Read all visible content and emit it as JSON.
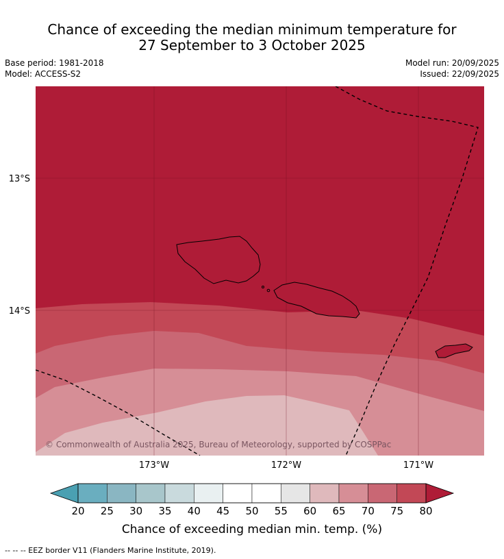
{
  "title": {
    "line1": "Chance of exceeding the median minimum temperature for",
    "line2": "27 September to 3 October 2025"
  },
  "meta_left": {
    "base_period": "Base period: 1981-2018",
    "model": "Model: ACCESS-S2"
  },
  "meta_right": {
    "model_run": "Model run: 20/09/2025",
    "issued": "Issued: 22/09/2025"
  },
  "map": {
    "lat_labels": [
      "13°S",
      "14°S"
    ],
    "lon_labels": [
      "173°W",
      "172°W",
      "171°W"
    ],
    "copyright": "© Commonwealth of Australia 2025, Bureau of Meteorology, supported by COSPPac",
    "bands": [
      {
        "range": "75-80",
        "color": "#c24856"
      },
      {
        "range": "70-75",
        "color": "#c96774"
      },
      {
        "range": "65-70",
        "color": "#d68e96"
      },
      {
        "range": "60-65",
        "color": "#dfb9bc"
      }
    ],
    "above_80_color": "#af1c37"
  },
  "colorbar": {
    "ticks": [
      "20",
      "25",
      "30",
      "35",
      "40",
      "45",
      "50",
      "55",
      "60",
      "65",
      "70",
      "75",
      "80"
    ],
    "segment_colors": [
      "#6aaebf",
      "#8ab6c2",
      "#a8c6cb",
      "#c9dadd",
      "#e9f0f1",
      "#ffffff",
      "#ffffff",
      "#e6e6e6",
      "#dfb9bc",
      "#d68e96",
      "#c96774",
      "#c24856"
    ],
    "under_color": "#4aa0b2",
    "over_color": "#af1c37",
    "label": "Chance of exceeding median min. temp. (%)"
  },
  "footer": {
    "legend_note": "--  --  -- EEZ border V11 (Flanders Marine Institute, 2019)."
  }
}
